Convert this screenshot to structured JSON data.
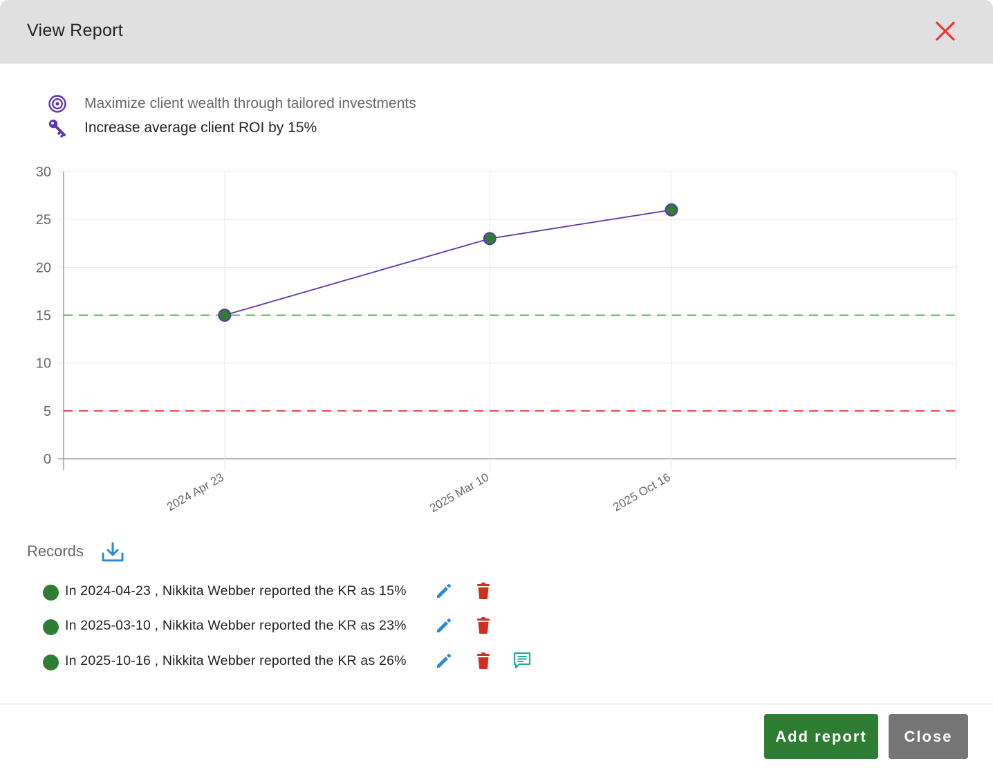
{
  "modal": {
    "title": "View Report"
  },
  "objective": {
    "icon": "target-icon",
    "text": "Maximize client wealth through tailored investments"
  },
  "key_result": {
    "icon": "key-icon",
    "text": "Increase average client ROI by 15%"
  },
  "chart_data": {
    "type": "line",
    "x": [
      "2024 Apr 23",
      "2025 Mar 10",
      "2025 Oct 16"
    ],
    "series": [
      {
        "values": [
          15,
          23,
          26
        ],
        "color": "#5e35b1",
        "point_color": "#2e7d32"
      }
    ],
    "reference_lines": [
      {
        "value": 15,
        "color": "#43a047",
        "style": "dashed"
      },
      {
        "value": 5,
        "color": "#e53935",
        "style": "dashed"
      }
    ],
    "yticks": [
      "0",
      "5",
      "10",
      "15",
      "20",
      "25",
      "30"
    ],
    "ylim": [
      0,
      30
    ],
    "xlim": [
      "2023 Oct 11",
      "2026 Sep 26"
    ],
    "grid": true
  },
  "records": {
    "title": "Records",
    "download_icon": "download-icon",
    "items": [
      {
        "text": "In 2024-04-23 , Nikkita Webber reported the KR as 15%",
        "has_comment": false
      },
      {
        "text": "In 2025-03-10 , Nikkita Webber reported the KR as 23%",
        "has_comment": false
      },
      {
        "text": "In 2025-10-16 , Nikkita Webber reported the KR as 26%",
        "has_comment": true
      }
    ]
  },
  "footer": {
    "add_label": "Add report",
    "close_label": "Close"
  },
  "colors": {
    "primary": "#2e7d32",
    "secondary": "#757575",
    "accent": "#5e35b1",
    "danger": "#e53935",
    "edit": "#2b8ad6"
  }
}
